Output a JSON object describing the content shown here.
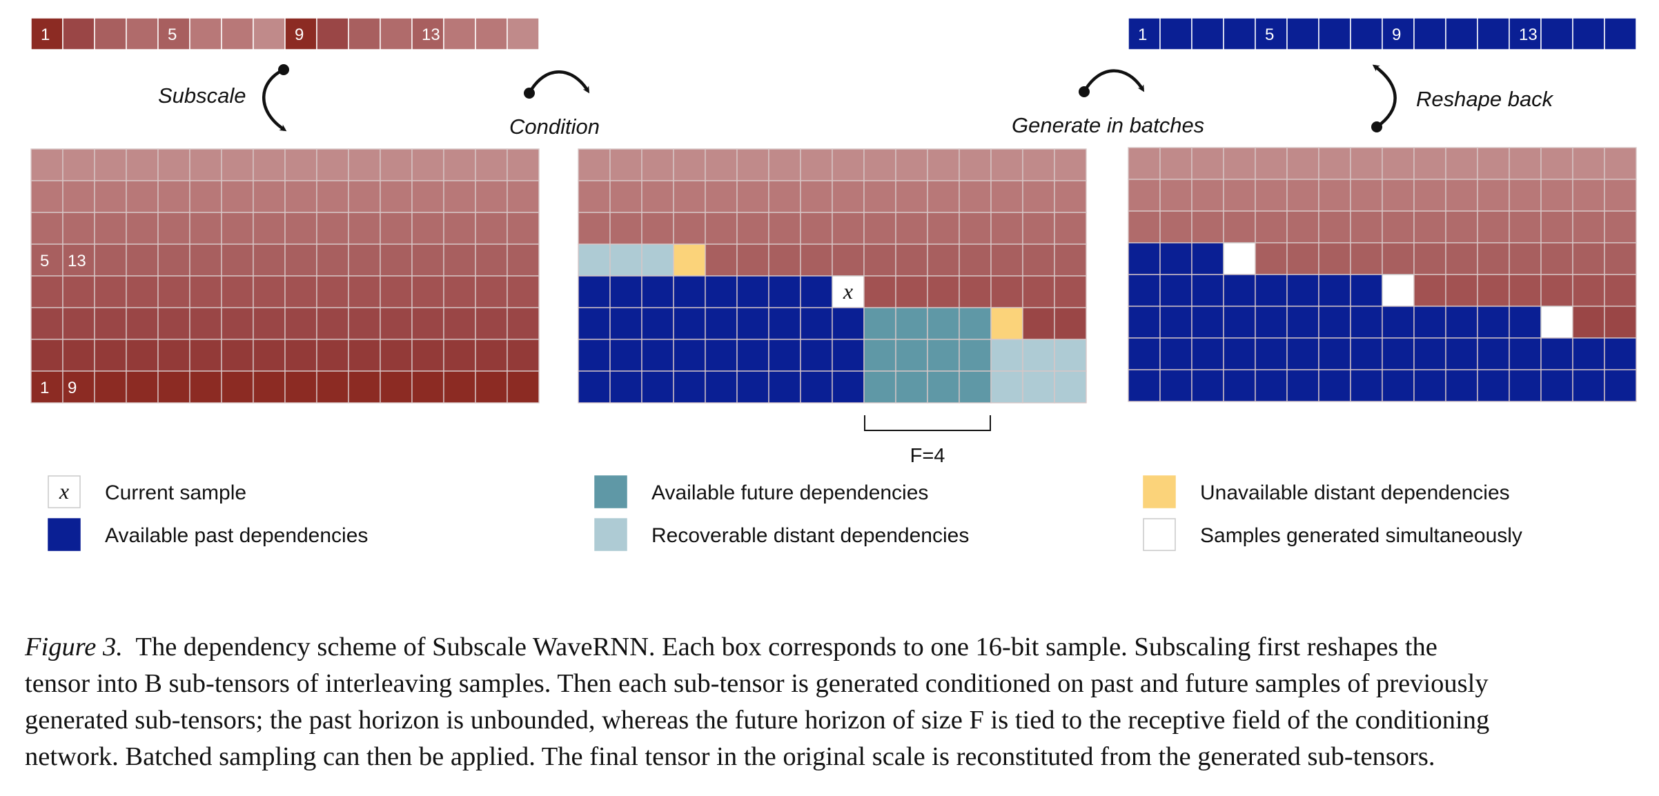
{
  "top_strip_numbers": [
    "1",
    "5",
    "9",
    "13"
  ],
  "grid_left_numbers": {
    "row4": [
      "5",
      "13"
    ],
    "row8": [
      "1",
      "9"
    ]
  },
  "arrows": {
    "subscale": "Subscale",
    "condition": "Condition",
    "generate": "Generate in batches",
    "reshape": "Reshape back"
  },
  "current_symbol": "x",
  "brace_label": "F=4",
  "legend": [
    {
      "key": "current",
      "symbol": "x",
      "label": "Current sample",
      "color": "#ffffff"
    },
    {
      "key": "past",
      "label": "Available past dependencies",
      "color": "#0a1f94"
    },
    {
      "key": "future",
      "label": "Available future dependencies",
      "color": "#5f98a6"
    },
    {
      "key": "recoverable",
      "label": "Recoverable distant dependencies",
      "color": "#aecbd4"
    },
    {
      "key": "unavailable",
      "label": "Unavailable distant dependencies",
      "color": "#fbd37a"
    },
    {
      "key": "simultaneous",
      "label": "Samples generated simultaneously",
      "color": "#ffffff"
    }
  ],
  "caption": {
    "label": "Figure 3.",
    "lines": [
      "The dependency scheme of Subscale WaveRNN. Each box corresponds to one 16-bit sample. Subscaling first reshapes the",
      "tensor into B sub-tensors of interleaving samples. Then each sub-tensor is generated conditioned on past and future samples of previously",
      "generated sub-tensors; the past horizon is unbounded, whereas the future horizon of size F is tied to the receptive field of the conditioning",
      "network. Batched sampling can then be applied. The final tensor in the original scale is reconstituted from the generated sub-tensors."
    ]
  },
  "colors": {
    "row_reds": [
      "#c08a8a",
      "#b87878",
      "#b06b6b",
      "#a85f5f",
      "#a25252",
      "#9a4646",
      "#933a38",
      "#8c2b23"
    ],
    "past_blue": "#0a1f94",
    "future_teal": "#5f98a6",
    "recoverable": "#aecbd4",
    "unavailable": "#fbd37a",
    "grid_line": "#d8c7c7"
  }
}
